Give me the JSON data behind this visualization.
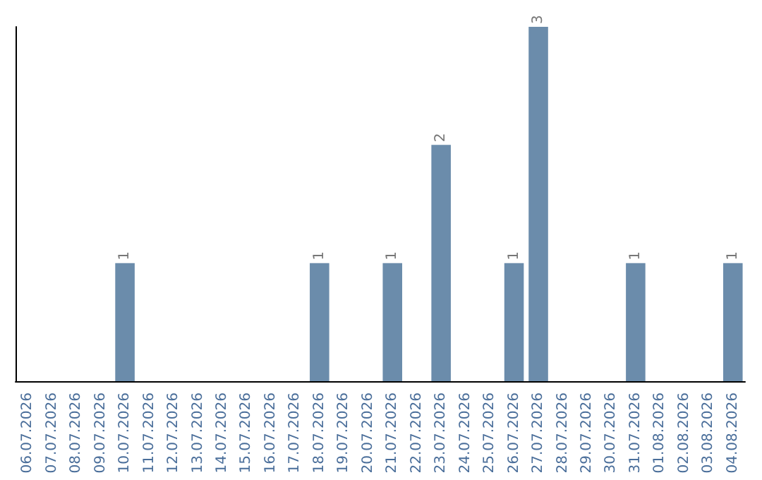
{
  "chart_data": {
    "type": "bar",
    "categories": [
      "06.07.2026",
      "07.07.2026",
      "08.07.2026",
      "09.07.2026",
      "10.07.2026",
      "11.07.2026",
      "12.07.2026",
      "13.07.2026",
      "14.07.2026",
      "15.07.2026",
      "16.07.2026",
      "17.07.2026",
      "18.07.2026",
      "19.07.2026",
      "20.07.2026",
      "21.07.2026",
      "22.07.2026",
      "23.07.2026",
      "24.07.2026",
      "25.07.2026",
      "26.07.2026",
      "27.07.2026",
      "28.07.2026",
      "29.07.2026",
      "30.07.2026",
      "31.07.2026",
      "01.08.2026",
      "02.08.2026",
      "03.08.2026",
      "04.08.2026"
    ],
    "values": [
      0,
      0,
      0,
      0,
      1,
      0,
      0,
      0,
      0,
      0,
      0,
      0,
      1,
      0,
      0,
      1,
      0,
      2,
      0,
      0,
      1,
      3,
      0,
      0,
      0,
      1,
      0,
      0,
      0,
      1
    ],
    "value_labels": [
      null,
      null,
      null,
      null,
      "1",
      null,
      null,
      null,
      null,
      null,
      null,
      null,
      "1",
      null,
      null,
      "1",
      null,
      "2",
      null,
      null,
      "1",
      "3",
      null,
      null,
      null,
      "1",
      null,
      null,
      null,
      "1"
    ],
    "color": "#6b8cab",
    "tick_labels": "x"
  }
}
